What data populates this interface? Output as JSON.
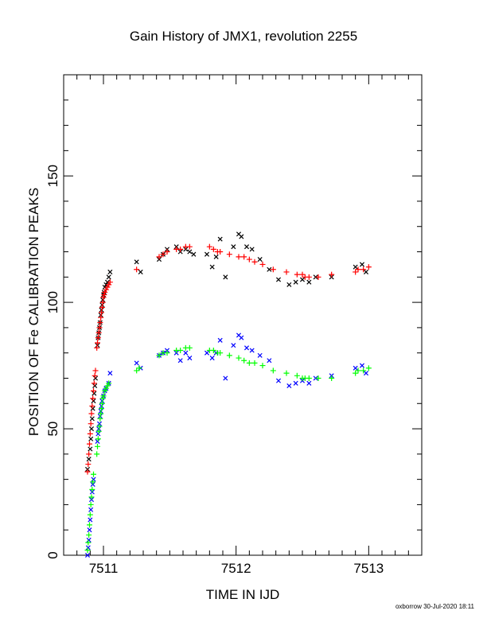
{
  "chart_data": {
    "type": "scatter",
    "title": "Gain History of JMX1, revolution 2255",
    "xlabel": "TIME IN IJD",
    "ylabel": "POSITION OF Fe CALIBRATION PEAKS",
    "xlim": [
      7510.7,
      7513.4
    ],
    "ylim": [
      0,
      190
    ],
    "x_ticks": [
      "7511",
      "7512",
      "7513"
    ],
    "y_ticks": [
      "0",
      "50",
      "100",
      "150"
    ],
    "grid": false,
    "legend": "none",
    "series": [
      {
        "color": "#000000",
        "marker": "x",
        "points": [
          [
            7510.88,
            34
          ],
          [
            7510.89,
            38
          ],
          [
            7510.9,
            42
          ],
          [
            7510.905,
            46
          ],
          [
            7510.91,
            50
          ],
          [
            7510.915,
            54
          ],
          [
            7510.92,
            58
          ],
          [
            7510.925,
            61
          ],
          [
            7510.93,
            64
          ],
          [
            7510.935,
            67
          ],
          [
            7510.94,
            70
          ],
          [
            7510.955,
            83
          ],
          [
            7510.96,
            86
          ],
          [
            7510.965,
            88
          ],
          [
            7510.97,
            90
          ],
          [
            7510.975,
            92
          ],
          [
            7510.98,
            95
          ],
          [
            7510.985,
            97
          ],
          [
            7510.99,
            99
          ],
          [
            7510.995,
            101
          ],
          [
            7511.0,
            103
          ],
          [
            7511.005,
            104
          ],
          [
            7511.01,
            106
          ],
          [
            7511.02,
            107
          ],
          [
            7511.03,
            108
          ],
          [
            7511.04,
            110
          ],
          [
            7511.05,
            112
          ],
          [
            7511.25,
            116
          ],
          [
            7511.28,
            112
          ],
          [
            7511.42,
            117
          ],
          [
            7511.45,
            119
          ],
          [
            7511.48,
            121
          ],
          [
            7511.55,
            122
          ],
          [
            7511.58,
            120
          ],
          [
            7511.62,
            121
          ],
          [
            7511.65,
            120
          ],
          [
            7511.68,
            119
          ],
          [
            7511.78,
            119
          ],
          [
            7511.82,
            114
          ],
          [
            7511.85,
            118
          ],
          [
            7511.88,
            125
          ],
          [
            7511.92,
            110
          ],
          [
            7511.98,
            122
          ],
          [
            7512.02,
            127
          ],
          [
            7512.04,
            126
          ],
          [
            7512.08,
            122
          ],
          [
            7512.12,
            121
          ],
          [
            7512.18,
            117
          ],
          [
            7512.25,
            113
          ],
          [
            7512.32,
            109
          ],
          [
            7512.4,
            107
          ],
          [
            7512.45,
            108
          ],
          [
            7512.5,
            109
          ],
          [
            7512.55,
            108
          ],
          [
            7512.6,
            110
          ],
          [
            7512.72,
            110
          ],
          [
            7512.9,
            114
          ],
          [
            7512.95,
            115
          ],
          [
            7512.98,
            112
          ]
        ]
      },
      {
        "color": "#ff0000",
        "marker": "+",
        "points": [
          [
            7510.88,
            33
          ],
          [
            7510.885,
            36
          ],
          [
            7510.89,
            40
          ],
          [
            7510.895,
            44
          ],
          [
            7510.9,
            48
          ],
          [
            7510.905,
            52
          ],
          [
            7510.91,
            56
          ],
          [
            7510.915,
            59
          ],
          [
            7510.92,
            62
          ],
          [
            7510.925,
            65
          ],
          [
            7510.93,
            68
          ],
          [
            7510.935,
            71
          ],
          [
            7510.94,
            73
          ],
          [
            7510.95,
            82
          ],
          [
            7510.955,
            84
          ],
          [
            7510.96,
            86
          ],
          [
            7510.965,
            88
          ],
          [
            7510.97,
            90
          ],
          [
            7510.975,
            92
          ],
          [
            7510.98,
            94
          ],
          [
            7510.985,
            96
          ],
          [
            7510.99,
            98
          ],
          [
            7510.995,
            100
          ],
          [
            7511.0,
            102
          ],
          [
            7511.005,
            103
          ],
          [
            7511.01,
            104
          ],
          [
            7511.02,
            105
          ],
          [
            7511.03,
            106
          ],
          [
            7511.04,
            107
          ],
          [
            7511.05,
            108
          ],
          [
            7511.25,
            113
          ],
          [
            7511.42,
            118
          ],
          [
            7511.45,
            119
          ],
          [
            7511.48,
            120
          ],
          [
            7511.55,
            121
          ],
          [
            7511.58,
            121
          ],
          [
            7511.62,
            122
          ],
          [
            7511.65,
            122
          ],
          [
            7511.8,
            122
          ],
          [
            7511.83,
            121
          ],
          [
            7511.86,
            120
          ],
          [
            7511.88,
            120
          ],
          [
            7511.95,
            119
          ],
          [
            7512.02,
            118
          ],
          [
            7512.06,
            118
          ],
          [
            7512.1,
            117
          ],
          [
            7512.14,
            116
          ],
          [
            7512.2,
            115
          ],
          [
            7512.28,
            113
          ],
          [
            7512.38,
            112
          ],
          [
            7512.46,
            111
          ],
          [
            7512.5,
            111
          ],
          [
            7512.52,
            110
          ],
          [
            7512.55,
            110
          ],
          [
            7512.62,
            110
          ],
          [
            7512.72,
            111
          ],
          [
            7512.9,
            112
          ],
          [
            7512.92,
            113
          ],
          [
            7512.96,
            113
          ],
          [
            7513.0,
            114
          ]
        ]
      },
      {
        "color": "#0000ff",
        "marker": "x",
        "points": [
          [
            7510.88,
            0
          ],
          [
            7510.885,
            3
          ],
          [
            7510.89,
            6
          ],
          [
            7510.895,
            10
          ],
          [
            7510.9,
            14
          ],
          [
            7510.905,
            18
          ],
          [
            7510.91,
            22
          ],
          [
            7510.915,
            25
          ],
          [
            7510.92,
            28
          ],
          [
            7510.925,
            30
          ],
          [
            7510.955,
            45
          ],
          [
            7510.96,
            48
          ],
          [
            7510.965,
            50
          ],
          [
            7510.97,
            52
          ],
          [
            7510.975,
            55
          ],
          [
            7510.98,
            57
          ],
          [
            7510.985,
            59
          ],
          [
            7510.99,
            61
          ],
          [
            7511.0,
            63
          ],
          [
            7511.01,
            65
          ],
          [
            7511.02,
            66
          ],
          [
            7511.04,
            68
          ],
          [
            7511.05,
            72
          ],
          [
            7511.25,
            76
          ],
          [
            7511.28,
            74
          ],
          [
            7511.42,
            79
          ],
          [
            7511.45,
            80
          ],
          [
            7511.48,
            81
          ],
          [
            7511.55,
            80
          ],
          [
            7511.58,
            77
          ],
          [
            7511.62,
            80
          ],
          [
            7511.65,
            78
          ],
          [
            7511.78,
            80
          ],
          [
            7511.82,
            78
          ],
          [
            7511.85,
            80
          ],
          [
            7511.88,
            85
          ],
          [
            7511.92,
            70
          ],
          [
            7511.98,
            83
          ],
          [
            7512.02,
            87
          ],
          [
            7512.04,
            86
          ],
          [
            7512.08,
            82
          ],
          [
            7512.12,
            81
          ],
          [
            7512.18,
            79
          ],
          [
            7512.25,
            77
          ],
          [
            7512.32,
            69
          ],
          [
            7512.4,
            67
          ],
          [
            7512.45,
            68
          ],
          [
            7512.5,
            69
          ],
          [
            7512.55,
            68
          ],
          [
            7512.6,
            70
          ],
          [
            7512.72,
            71
          ],
          [
            7512.9,
            74
          ],
          [
            7512.95,
            75
          ],
          [
            7512.98,
            72
          ]
        ]
      },
      {
        "color": "#00ff00",
        "marker": "+",
        "points": [
          [
            7510.88,
            2
          ],
          [
            7510.885,
            5
          ],
          [
            7510.89,
            8
          ],
          [
            7510.895,
            12
          ],
          [
            7510.9,
            16
          ],
          [
            7510.905,
            20
          ],
          [
            7510.91,
            23
          ],
          [
            7510.915,
            26
          ],
          [
            7510.92,
            29
          ],
          [
            7510.925,
            32
          ],
          [
            7510.95,
            40
          ],
          [
            7510.955,
            43
          ],
          [
            7510.96,
            46
          ],
          [
            7510.965,
            49
          ],
          [
            7510.97,
            51
          ],
          [
            7510.975,
            54
          ],
          [
            7510.98,
            56
          ],
          [
            7510.985,
            58
          ],
          [
            7510.99,
            60
          ],
          [
            7510.995,
            62
          ],
          [
            7511.0,
            63
          ],
          [
            7511.01,
            65
          ],
          [
            7511.02,
            66
          ],
          [
            7511.03,
            67
          ],
          [
            7511.04,
            68
          ],
          [
            7511.25,
            73
          ],
          [
            7511.27,
            74
          ],
          [
            7511.42,
            79
          ],
          [
            7511.45,
            80
          ],
          [
            7511.48,
            80
          ],
          [
            7511.55,
            81
          ],
          [
            7511.58,
            81
          ],
          [
            7511.62,
            82
          ],
          [
            7511.65,
            82
          ],
          [
            7511.8,
            81
          ],
          [
            7511.83,
            81
          ],
          [
            7511.86,
            80
          ],
          [
            7511.88,
            80
          ],
          [
            7511.95,
            79
          ],
          [
            7512.02,
            78
          ],
          [
            7512.06,
            77
          ],
          [
            7512.1,
            76
          ],
          [
            7512.14,
            76
          ],
          [
            7512.2,
            75
          ],
          [
            7512.28,
            73
          ],
          [
            7512.38,
            72
          ],
          [
            7512.46,
            71
          ],
          [
            7512.5,
            70
          ],
          [
            7512.52,
            70
          ],
          [
            7512.55,
            70
          ],
          [
            7512.62,
            70
          ],
          [
            7512.72,
            70
          ],
          [
            7512.9,
            72
          ],
          [
            7512.92,
            73
          ],
          [
            7512.96,
            73
          ],
          [
            7513.0,
            74
          ]
        ]
      }
    ]
  },
  "footer": {
    "stamp": "oxborrow 30-Jul-2020 18:11"
  }
}
